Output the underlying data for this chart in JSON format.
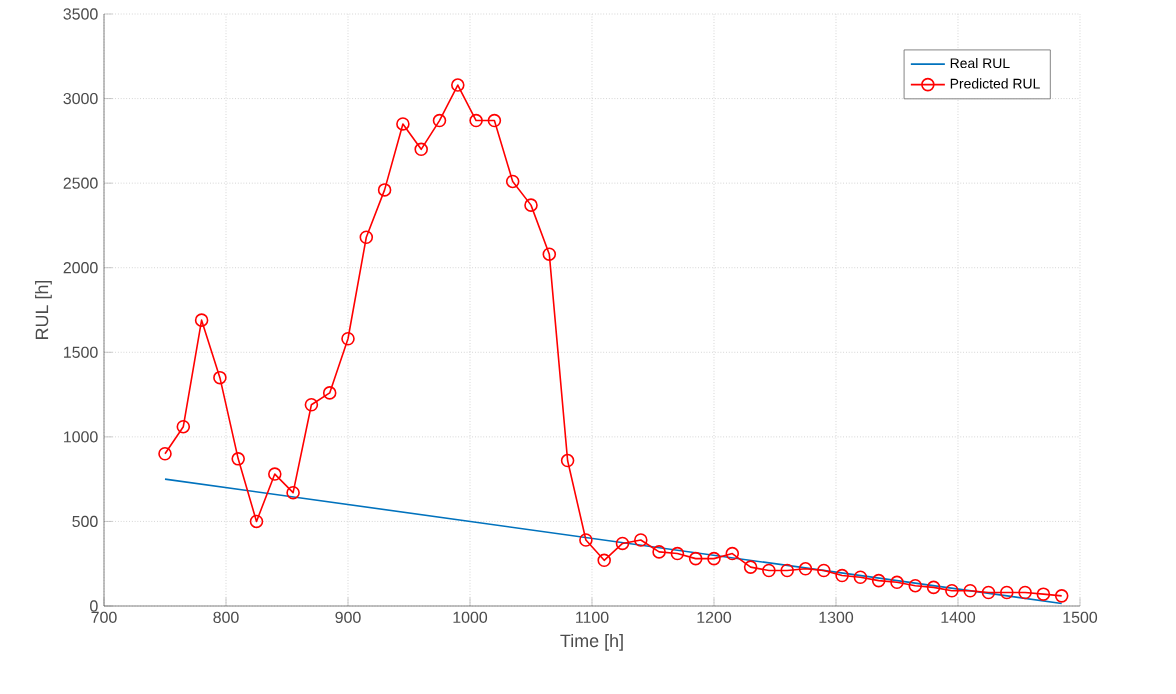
{
  "chart_data": {
    "type": "line",
    "xlabel": "Time [h]",
    "ylabel": "RUL [h]",
    "xlim": [
      700,
      1500
    ],
    "ylim": [
      0,
      3500
    ],
    "xticks": [
      700,
      800,
      900,
      1000,
      1100,
      1200,
      1300,
      1400,
      1500
    ],
    "yticks": [
      0,
      500,
      1000,
      1500,
      2000,
      2500,
      3000,
      3500
    ],
    "grid": true,
    "legend": "top right",
    "series": [
      {
        "name": "Real RUL",
        "color": "#0072bd",
        "marker": "none",
        "x": [
          750,
          1485
        ],
        "values": [
          750,
          15
        ]
      },
      {
        "name": "Predicted RUL",
        "color": "#ff0000",
        "marker": "circle",
        "x": [
          750,
          765,
          780,
          795,
          810,
          825,
          840,
          855,
          870,
          885,
          900,
          915,
          930,
          945,
          960,
          975,
          990,
          1005,
          1020,
          1035,
          1050,
          1065,
          1080,
          1095,
          1110,
          1125,
          1140,
          1155,
          1170,
          1185,
          1200,
          1215,
          1230,
          1245,
          1260,
          1275,
          1290,
          1305,
          1320,
          1335,
          1350,
          1365,
          1380,
          1395,
          1410,
          1425,
          1440,
          1455,
          1470,
          1485
        ],
        "values": [
          900,
          1060,
          1690,
          1350,
          870,
          500,
          780,
          670,
          1190,
          1260,
          1580,
          2180,
          2460,
          2850,
          2700,
          2870,
          3080,
          2870,
          2870,
          2510,
          2370,
          2080,
          860,
          390,
          270,
          370,
          390,
          320,
          310,
          280,
          280,
          310,
          230,
          210,
          210,
          220,
          210,
          180,
          170,
          150,
          140,
          120,
          110,
          90,
          90,
          80,
          80,
          80,
          70,
          60
        ]
      }
    ]
  }
}
